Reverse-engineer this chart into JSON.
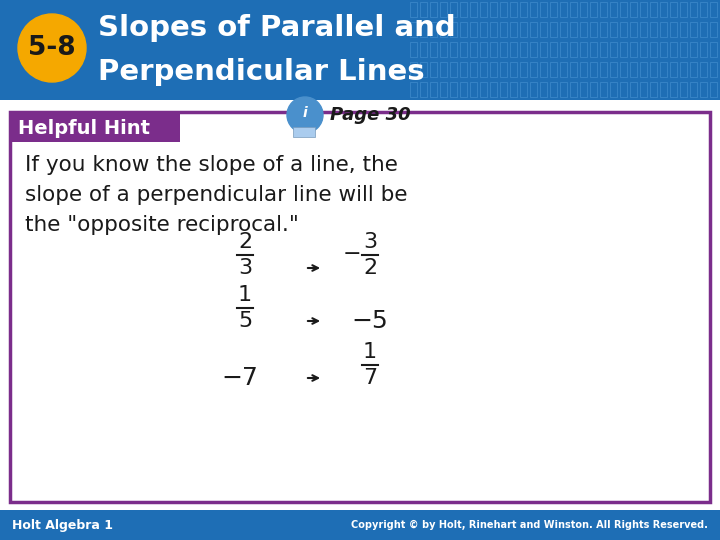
{
  "title_number": "5-8",
  "title_number_bg": "#F5A800",
  "title_text_line1": "Slopes of Parallel and",
  "title_text_line2": "Perpendicular Lines",
  "title_bg_color": "#1E6EB5",
  "title_text_color": "#FFFFFF",
  "page_text": "Page 30",
  "helpful_hint_bg": "#7B2D8B",
  "helpful_hint_text": "Helpful Hint",
  "helpful_hint_text_color": "#FFFFFF",
  "body_text_line1": "If you know the slope of a line, the",
  "body_text_line2": "slope of a perpendicular line will be",
  "body_text_line3": "the \"opposite reciprocal.\"",
  "box_border_color": "#7B2D8B",
  "box_bg_color": "#FFFFFF",
  "footer_bg": "#1E6EB5",
  "footer_left": "Holt Algebra 1",
  "footer_right": "Copyright © by Holt, Rinehart and Winston. All Rights Reserved.",
  "footer_text_color": "#FFFFFF",
  "slide_bg": "#FFFFFF",
  "header_grid_color": "#4A8FD0"
}
